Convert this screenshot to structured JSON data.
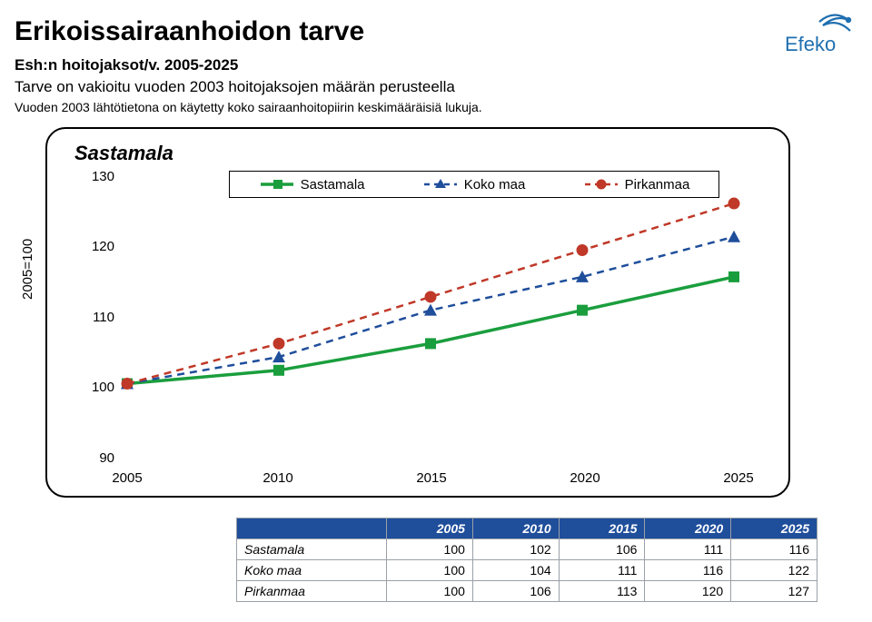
{
  "title": "Erikoissairaanhoidon tarve",
  "sub1": "Esh:n hoitojaksot/v. 2005-2025",
  "sub2": "Tarve on vakioitu vuoden 2003 hoitojaksojen määrän perusteella",
  "sub3": "Vuoden 2003 lähtötietona on käytetty koko sairaanhoitopiirin keskimääräisiä lukuja.",
  "panel_title": "Sastamala",
  "y_axis_label": "2005=100",
  "logo_text": "Efeko",
  "chart": {
    "type": "line",
    "x": [
      2005,
      2010,
      2015,
      2020,
      2025
    ],
    "xlim": [
      2005,
      2025
    ],
    "ylim": [
      90,
      130
    ],
    "ytick_step": 10,
    "background": "#ffffff",
    "series": [
      {
        "name": "Sastamala",
        "values": [
          100,
          102,
          106,
          111,
          116
        ],
        "color": "#1a9e3d",
        "dash": "none",
        "marker": "square",
        "marker_color": "#1a9e3d",
        "line_width": 3.5
      },
      {
        "name": "Koko maa",
        "values": [
          100,
          104,
          111,
          116,
          122
        ],
        "color": "#1f4e9b",
        "dash": "8,6",
        "marker": "triangle",
        "marker_color": "#1f4e9b",
        "line_width": 2.5
      },
      {
        "name": "Pirkanmaa",
        "values": [
          100,
          106,
          113,
          120,
          127
        ],
        "color": "#c03828",
        "dash": "8,6",
        "marker": "circle",
        "marker_color": "#c03828",
        "line_width": 2.5
      }
    ]
  },
  "table": {
    "columns": [
      "",
      "2005",
      "2010",
      "2015",
      "2020",
      "2025"
    ],
    "rows": [
      [
        "Sastamala",
        100,
        102,
        106,
        111,
        116
      ],
      [
        "Koko maa",
        100,
        104,
        111,
        116,
        122
      ],
      [
        "Pirkanmaa",
        100,
        106,
        113,
        120,
        127
      ]
    ],
    "header_bg": "#1f4e9b",
    "header_color": "#ffffff",
    "border_color": "#9aa0a6"
  }
}
